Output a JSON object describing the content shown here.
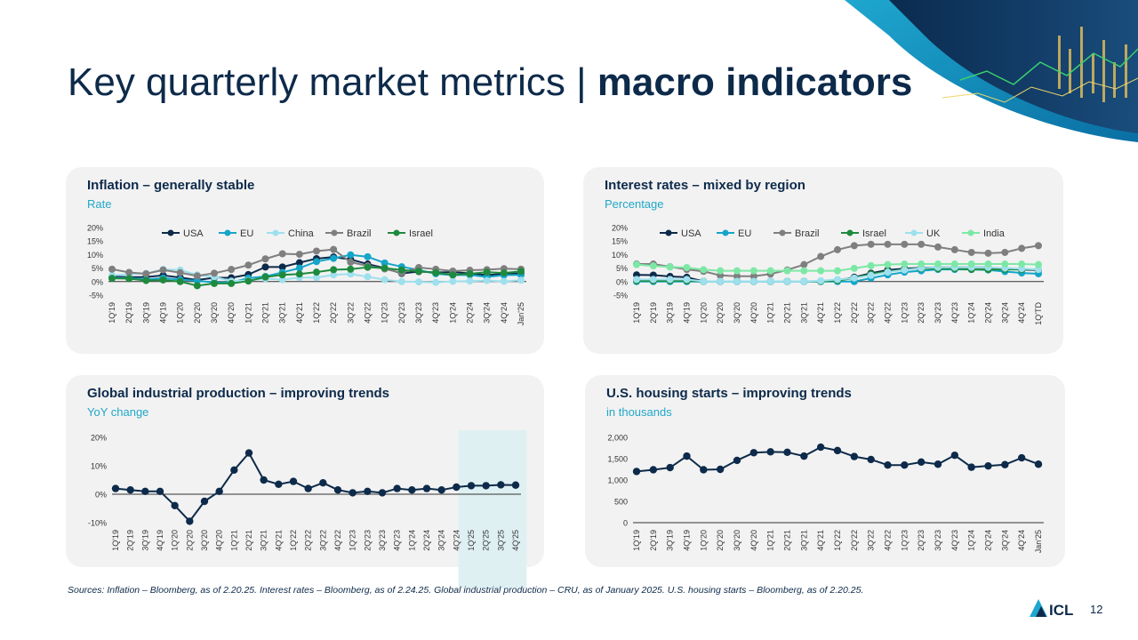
{
  "slide": {
    "title_regular": "Key quarterly market metrics | ",
    "title_bold": "macro indicators",
    "sources": "Sources: Inflation – Bloomberg, as of 2.20.25. Interest rates – Bloomberg, as of 2.24.25. Global industrial production – CRU, as of January 2025. U.S. housing starts – Bloomberg, as of 2.20.25.",
    "page_number": "12",
    "logo_text": "ICL"
  },
  "chart_data": [
    {
      "type": "line",
      "title": "Inflation – generally stable",
      "subtitle": "Rate",
      "categories": [
        "1Q'19",
        "2Q'19",
        "3Q'19",
        "4Q'19",
        "1Q'20",
        "2Q'20",
        "3Q'20",
        "4Q'20",
        "1Q'21",
        "2Q'21",
        "3Q'21",
        "4Q'21",
        "1Q'22",
        "2Q'22",
        "3Q'22",
        "4Q'22",
        "1Q'23",
        "2Q'23",
        "3Q'23",
        "4Q'23",
        "1Q'24",
        "2Q'24",
        "3Q'24",
        "4Q'24",
        "Jan'25"
      ],
      "y_ticks": [
        "20%",
        "15%",
        "10%",
        "5%",
        "0%",
        "-5%"
      ],
      "ylim": [
        -5,
        20
      ],
      "legend_position": "top",
      "series": [
        {
          "name": "USA",
          "color": "#0d2a4a",
          "values": [
            1.9,
            1.6,
            1.7,
            2.3,
            1.5,
            0.6,
            1.4,
            1.4,
            2.6,
            5.4,
            5.4,
            7.0,
            8.5,
            9.1,
            8.2,
            6.5,
            5.0,
            3.0,
            3.7,
            3.4,
            3.5,
            3.0,
            2.4,
            2.9,
            3.0
          ]
        },
        {
          "name": "EU",
          "color": "#14a5c9",
          "values": [
            1.4,
            1.3,
            0.8,
            1.3,
            0.7,
            0.3,
            -0.3,
            -0.3,
            1.3,
            1.9,
            3.4,
            5.0,
            7.4,
            8.6,
            9.9,
            9.2,
            6.9,
            5.5,
            4.3,
            2.9,
            2.4,
            2.5,
            1.7,
            2.4,
            2.5
          ]
        },
        {
          "name": "China",
          "color": "#9ee0ed",
          "values": [
            2.3,
            2.7,
            3.0,
            4.5,
            4.3,
            2.5,
            1.7,
            0.2,
            0.4,
            1.1,
            0.7,
            1.5,
            1.5,
            2.5,
            2.8,
            1.8,
            0.7,
            0.0,
            -0.1,
            -0.3,
            0.1,
            0.2,
            0.4,
            0.1,
            0.5
          ]
        },
        {
          "name": "Brazil",
          "color": "#7f7f7f",
          "values": [
            4.6,
            3.4,
            2.9,
            4.3,
            3.3,
            2.1,
            3.1,
            4.5,
            6.1,
            8.4,
            10.3,
            10.1,
            11.3,
            11.9,
            7.2,
            5.8,
            4.7,
            3.2,
            5.2,
            4.6,
            3.9,
            4.2,
            4.4,
            4.8,
            4.6
          ]
        },
        {
          "name": "Israel",
          "color": "#1e8a3e",
          "values": [
            1.2,
            1.1,
            0.4,
            0.6,
            0.0,
            -1.5,
            -0.7,
            -0.7,
            0.2,
            1.7,
            2.5,
            2.8,
            3.5,
            4.4,
            4.6,
            5.3,
            5.0,
            4.3,
            3.8,
            3.3,
            2.5,
            2.9,
            3.5,
            3.2,
            3.8
          ]
        }
      ]
    },
    {
      "type": "line",
      "title": "Interest rates – mixed by region",
      "subtitle": "Percentage",
      "categories": [
        "1Q'19",
        "2Q'19",
        "3Q'19",
        "4Q'19",
        "1Q'20",
        "2Q'20",
        "3Q'20",
        "4Q'20",
        "1Q'21",
        "2Q'21",
        "3Q'21",
        "4Q'21",
        "1Q'22",
        "2Q'22",
        "3Q'22",
        "4Q'22",
        "1Q'23",
        "2Q'23",
        "3Q'23",
        "4Q'23",
        "1Q'24",
        "2Q'24",
        "3Q'24",
        "4Q'24",
        "1Q'TD"
      ],
      "y_ticks": [
        "20%",
        "15%",
        "10%",
        "5%",
        "0%",
        "-5%"
      ],
      "ylim": [
        -5,
        20
      ],
      "legend_position": "top",
      "series": [
        {
          "name": "USA",
          "color": "#0d2a4a",
          "values": [
            2.5,
            2.4,
            1.9,
            1.6,
            0.1,
            0.1,
            0.1,
            0.1,
            0.1,
            0.1,
            0.1,
            0.1,
            0.5,
            1.6,
            3.1,
            4.3,
            4.8,
            5.1,
            5.3,
            5.3,
            5.3,
            5.3,
            4.8,
            4.4,
            4.3
          ]
        },
        {
          "name": "EU",
          "color": "#14a5c9",
          "values": [
            0.0,
            0.0,
            0.0,
            0.0,
            0.0,
            0.0,
            0.0,
            0.0,
            0.0,
            0.0,
            0.0,
            0.0,
            0.0,
            0.0,
            1.3,
            2.5,
            3.5,
            4.0,
            4.5,
            4.5,
            4.5,
            4.3,
            3.7,
            3.2,
            2.9
          ]
        },
        {
          "name": "Brazil",
          "color": "#7f7f7f",
          "values": [
            6.5,
            6.5,
            5.5,
            4.5,
            3.8,
            2.3,
            2.0,
            2.0,
            2.8,
            4.3,
            6.3,
            9.3,
            11.8,
            13.3,
            13.8,
            13.8,
            13.8,
            13.8,
            12.8,
            11.8,
            10.8,
            10.5,
            10.8,
            12.3,
            13.3
          ]
        },
        {
          "name": "Israel",
          "color": "#1e8a3e",
          "values": [
            0.3,
            0.3,
            0.3,
            0.3,
            0.1,
            0.1,
            0.1,
            0.1,
            0.1,
            0.1,
            0.1,
            0.1,
            0.4,
            1.3,
            2.8,
            3.8,
            4.5,
            4.8,
            4.8,
            4.8,
            4.5,
            4.5,
            4.5,
            4.5,
            4.5
          ]
        },
        {
          "name": "UK",
          "color": "#9ee0ed",
          "values": [
            0.8,
            0.8,
            0.8,
            0.8,
            0.1,
            0.1,
            0.1,
            0.1,
            0.1,
            0.1,
            0.1,
            0.3,
            0.8,
            1.3,
            2.3,
            3.5,
            4.3,
            5.0,
            5.3,
            5.3,
            5.3,
            5.3,
            5.0,
            4.8,
            4.5
          ]
        },
        {
          "name": "India",
          "color": "#7de8a6",
          "values": [
            6.3,
            5.8,
            5.4,
            5.2,
            4.4,
            4.0,
            4.0,
            4.0,
            4.0,
            4.0,
            4.0,
            4.0,
            4.0,
            4.9,
            5.9,
            6.3,
            6.5,
            6.5,
            6.5,
            6.5,
            6.5,
            6.5,
            6.5,
            6.5,
            6.3
          ]
        }
      ]
    },
    {
      "type": "line",
      "title": "Global industrial production – improving trends",
      "subtitle": "YoY change",
      "categories": [
        "1Q'19",
        "2Q'19",
        "3Q'19",
        "4Q'19",
        "1Q'20",
        "2Q'20",
        "3Q'20",
        "4Q'20",
        "1Q'21",
        "2Q'21",
        "3Q'21",
        "4Q'21",
        "1Q'22",
        "2Q'22",
        "3Q'22",
        "4Q'22",
        "1Q'23",
        "2Q'23",
        "3Q'23",
        "4Q'23",
        "1Q'24",
        "2Q'24",
        "3Q'24",
        "4Q'24",
        "1Q'25",
        "2Q'25",
        "3Q'25",
        "4Q'25"
      ],
      "y_ticks": [
        "20%",
        "10%",
        "0%",
        "-10%"
      ],
      "ylim": [
        -10,
        20
      ],
      "highlight_from": "1Q'25",
      "series": [
        {
          "name": "",
          "color": "#0d2a4a",
          "values": [
            2,
            1.5,
            1,
            1,
            -4,
            -9.5,
            -2.5,
            1,
            8.5,
            14.5,
            5,
            3.5,
            4.5,
            2,
            4,
            1.5,
            0.5,
            1,
            0.5,
            2,
            1.5,
            2,
            1.5,
            2.5,
            3,
            3,
            3.3,
            3.2
          ]
        }
      ]
    },
    {
      "type": "line",
      "title": "U.S. housing starts – improving trends",
      "subtitle": "in thousands",
      "categories": [
        "1Q'19",
        "2Q'19",
        "3Q'19",
        "4Q'19",
        "1Q'20",
        "2Q'20",
        "3Q'20",
        "4Q'20",
        "1Q'21",
        "2Q'21",
        "3Q'21",
        "4Q'21",
        "1Q'22",
        "2Q'22",
        "3Q'22",
        "4Q'22",
        "1Q'23",
        "2Q'23",
        "3Q'23",
        "4Q'23",
        "1Q'24",
        "2Q'24",
        "3Q'24",
        "4Q'24",
        "Jan'25"
      ],
      "y_ticks": [
        "2,000",
        "1,500",
        "1,000",
        "500",
        "0"
      ],
      "ylim": [
        0,
        2000
      ],
      "series": [
        {
          "name": "",
          "color": "#0d2a4a",
          "values": [
            1200,
            1240,
            1290,
            1560,
            1240,
            1250,
            1460,
            1640,
            1660,
            1650,
            1560,
            1770,
            1690,
            1550,
            1480,
            1350,
            1350,
            1420,
            1370,
            1580,
            1300,
            1330,
            1360,
            1520,
            1370
          ]
        }
      ]
    }
  ]
}
